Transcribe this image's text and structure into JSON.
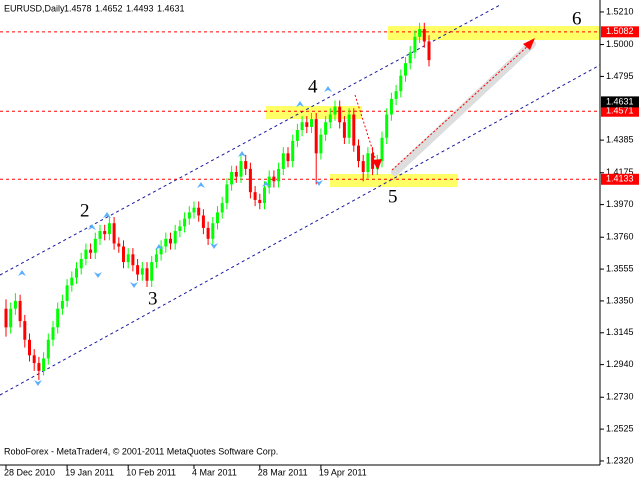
{
  "chart_data": {
    "type": "candlestick",
    "title": "EURUSD,Daily",
    "header_ohlc": [
      1.4578,
      1.4652,
      1.4493,
      1.4631
    ],
    "footer": "RoboForex - MetaTrader4, © 2001-2011 MetaQuotes Software Corp.",
    "up_color": "#00ff00",
    "down_color": "#ff0000",
    "categories": [
      "28 Dec 2010",
      null,
      null,
      null,
      null,
      null,
      null,
      null,
      null,
      null,
      null,
      null,
      null,
      "19 Jan 2011",
      null,
      null,
      null,
      null,
      null,
      null,
      null,
      null,
      null,
      null,
      null,
      null,
      "10 Feb 2011",
      null,
      null,
      null,
      null,
      null,
      null,
      null,
      null,
      null,
      null,
      null,
      null,
      null,
      "4 Mar 2011",
      null,
      null,
      null,
      null,
      null,
      null,
      null,
      null,
      null,
      null,
      null,
      null,
      null,
      "28 Mar 2011",
      null,
      null,
      null,
      null,
      null,
      null,
      null,
      null,
      null,
      null,
      null,
      null,
      "19 Apr 2011",
      null,
      null,
      null,
      null,
      null,
      null,
      null,
      null,
      null,
      null,
      null,
      null,
      null,
      null,
      null,
      null,
      null,
      null,
      null,
      null,
      null,
      null,
      null
    ],
    "open": [
      1.33,
      1.318,
      1.33,
      1.335,
      1.322,
      1.31,
      1.3,
      1.295,
      1.29,
      1.298,
      1.31,
      1.318,
      1.33,
      1.335,
      1.345,
      1.35,
      1.356,
      1.362,
      1.368,
      1.366,
      1.375,
      1.38,
      1.378,
      1.385,
      1.372,
      1.37,
      1.36,
      1.365,
      1.358,
      1.352,
      1.356,
      1.348,
      1.36,
      1.365,
      1.37,
      1.375,
      1.372,
      1.38,
      1.383,
      1.388,
      1.392,
      1.395,
      1.39,
      1.382,
      1.375,
      1.385,
      1.392,
      1.398,
      1.41,
      1.418,
      1.415,
      1.425,
      1.42,
      1.405,
      1.4,
      1.398,
      1.408,
      1.415,
      1.412,
      1.42,
      1.43,
      1.425,
      1.438,
      1.445,
      1.45,
      1.447,
      1.452,
      1.43,
      1.442,
      1.45,
      1.455,
      1.46,
      1.45,
      1.44,
      1.455,
      1.435,
      1.425,
      1.418,
      1.43,
      1.42,
      1.425,
      1.44,
      1.455,
      1.465,
      1.47,
      1.48,
      1.488,
      1.495,
      1.505,
      1.51,
      1.502
    ],
    "high": [
      1.336,
      1.334,
      1.34,
      1.339,
      1.326,
      1.314,
      1.304,
      1.299,
      1.302,
      1.314,
      1.322,
      1.334,
      1.339,
      1.349,
      1.354,
      1.36,
      1.366,
      1.372,
      1.372,
      1.379,
      1.384,
      1.384,
      1.389,
      1.389,
      1.376,
      1.374,
      1.369,
      1.369,
      1.362,
      1.36,
      1.36,
      1.364,
      1.369,
      1.374,
      1.379,
      1.379,
      1.384,
      1.387,
      1.392,
      1.396,
      1.399,
      1.399,
      1.394,
      1.386,
      1.389,
      1.396,
      1.402,
      1.414,
      1.422,
      1.422,
      1.429,
      1.429,
      1.424,
      1.409,
      1.404,
      1.412,
      1.419,
      1.419,
      1.424,
      1.434,
      1.434,
      1.442,
      1.449,
      1.454,
      1.454,
      1.456,
      1.456,
      1.446,
      1.454,
      1.459,
      1.464,
      1.464,
      1.454,
      1.459,
      1.459,
      1.439,
      1.429,
      1.434,
      1.434,
      1.429,
      1.444,
      1.459,
      1.469,
      1.474,
      1.484,
      1.492,
      1.499,
      1.509,
      1.514,
      1.514,
      1.506
    ],
    "low": [
      1.312,
      1.314,
      1.326,
      1.318,
      1.305,
      1.296,
      1.29,
      1.284,
      1.287,
      1.294,
      1.306,
      1.314,
      1.326,
      1.331,
      1.341,
      1.346,
      1.352,
      1.358,
      1.362,
      1.362,
      1.371,
      1.374,
      1.374,
      1.368,
      1.366,
      1.356,
      1.356,
      1.354,
      1.348,
      1.348,
      1.344,
      1.344,
      1.356,
      1.361,
      1.366,
      1.368,
      1.368,
      1.376,
      1.379,
      1.384,
      1.388,
      1.386,
      1.378,
      1.371,
      1.371,
      1.381,
      1.388,
      1.394,
      1.406,
      1.411,
      1.411,
      1.416,
      1.401,
      1.396,
      1.394,
      1.394,
      1.404,
      1.408,
      1.408,
      1.416,
      1.421,
      1.421,
      1.434,
      1.441,
      1.443,
      1.443,
      1.41,
      1.426,
      1.438,
      1.446,
      1.451,
      1.446,
      1.436,
      1.436,
      1.431,
      1.421,
      1.412,
      1.414,
      1.416,
      1.416,
      1.421,
      1.436,
      1.451,
      1.461,
      1.466,
      1.476,
      1.484,
      1.491,
      1.501,
      1.498,
      1.486
    ],
    "close": [
      1.318,
      1.33,
      1.335,
      1.322,
      1.31,
      1.3,
      1.295,
      1.29,
      1.298,
      1.31,
      1.318,
      1.33,
      1.335,
      1.345,
      1.35,
      1.356,
      1.362,
      1.368,
      1.366,
      1.375,
      1.38,
      1.378,
      1.385,
      1.372,
      1.37,
      1.36,
      1.365,
      1.358,
      1.352,
      1.356,
      1.348,
      1.36,
      1.365,
      1.37,
      1.375,
      1.372,
      1.38,
      1.383,
      1.388,
      1.392,
      1.395,
      1.39,
      1.382,
      1.375,
      1.385,
      1.392,
      1.398,
      1.41,
      1.418,
      1.415,
      1.425,
      1.42,
      1.405,
      1.4,
      1.398,
      1.408,
      1.415,
      1.412,
      1.42,
      1.43,
      1.425,
      1.438,
      1.445,
      1.45,
      1.447,
      1.452,
      1.43,
      1.442,
      1.45,
      1.455,
      1.46,
      1.45,
      1.44,
      1.455,
      1.435,
      1.425,
      1.418,
      1.43,
      1.42,
      1.425,
      1.44,
      1.455,
      1.465,
      1.47,
      1.48,
      1.488,
      1.495,
      1.505,
      1.51,
      1.502,
      1.49
    ],
    "levels": [
      1.5082,
      1.4571,
      1.4133
    ],
    "level_color": "#ff0000",
    "annotations": [
      "2",
      "3",
      "4",
      "5",
      "6"
    ],
    "ylim": [
      1.2294,
      1.5274
    ],
    "yticks": [
      {
        "value": 1.521,
        "label": "1.5210"
      },
      {
        "value": 1.5,
        "label": "1.5000"
      },
      1.4795,
      1.4385,
      1.4175,
      {
        "value": 1.397,
        "label": "1.3970"
      },
      {
        "value": 1.376,
        "label": "1.3760"
      },
      1.3555,
      {
        "value": 1.335,
        "label": "1.3350"
      },
      1.3145,
      {
        "value": 1.294,
        "label": "1.2940"
      },
      {
        "value": 1.273,
        "label": "1.2730"
      },
      1.2525,
      {
        "value": 1.232,
        "label": "1.2320"
      }
    ]
  }
}
